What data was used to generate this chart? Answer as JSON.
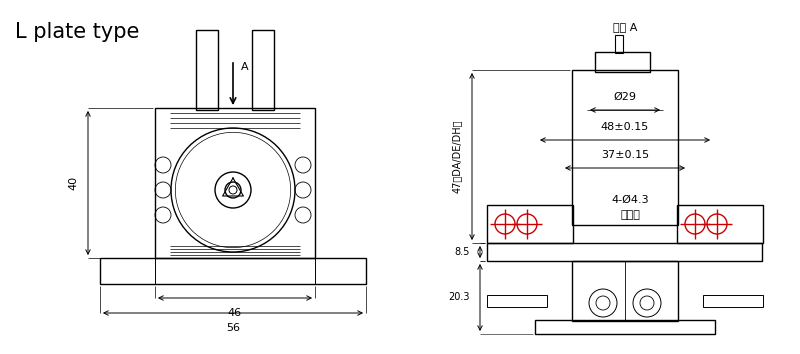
{
  "title": "L plate type",
  "view_label": "视图 A",
  "bg_color": "#ffffff",
  "line_color": "#000000",
  "red_color": "#cc0000",
  "annotations": {
    "phi29_text": "Ø29",
    "dim48_text": "48±0.15",
    "dim37_text": "37±0.15",
    "dim4phi43_text": "4-Ø4.3",
    "yonghuyong_text": "用户用",
    "dim40_text": "40",
    "dim46_text": "46",
    "dim56_text": "56",
    "dim47_text": "47（DA/DE/DH）",
    "dim85_text": "8.5",
    "dim203_text": "20.3",
    "arrow_label": "A"
  },
  "figsize": [
    8.0,
    3.54
  ],
  "dpi": 100
}
